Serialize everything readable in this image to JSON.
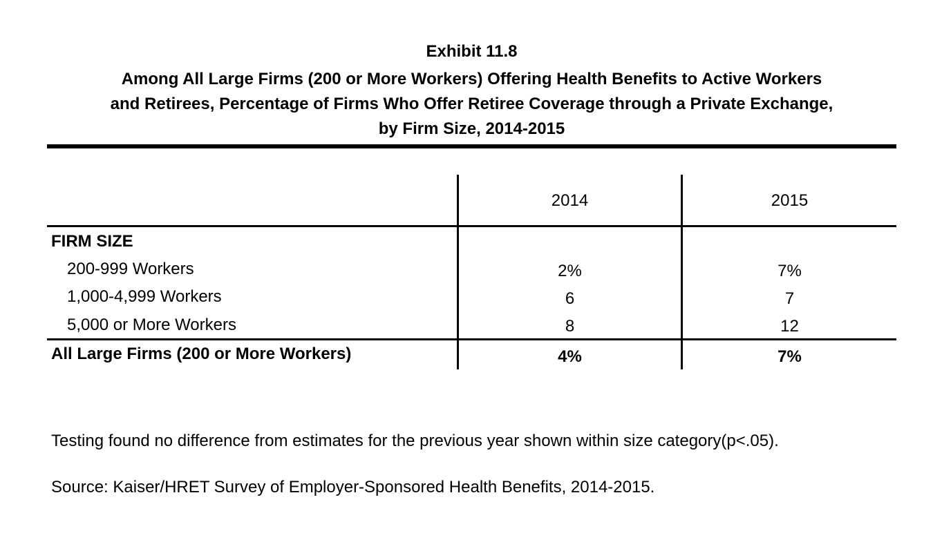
{
  "title": "Exhibit 11.8",
  "subtitle_lines": [
    "Among All Large Firms (200 or More Workers) Offering Health Benefits to Active Workers",
    "and Retirees, Percentage of Firms Who Offer Retiree Coverage through a Private Exchange,",
    "by Firm Size, 2014-2015"
  ],
  "chart_data": {
    "type": "table",
    "columns": [
      "2014",
      "2015"
    ],
    "section_header": "FIRM SIZE",
    "rows": [
      {
        "label": "200-999 Workers",
        "values": [
          "2%",
          "7%"
        ]
      },
      {
        "label": "1,000-4,999 Workers",
        "values": [
          "6",
          "7"
        ]
      },
      {
        "label": "5,000 or More Workers",
        "values": [
          "8",
          "12"
        ]
      }
    ],
    "total_row": {
      "label": "All Large Firms (200 or More Workers)",
      "values": [
        "4%",
        "7%"
      ]
    }
  },
  "notes": {
    "testing": "Testing found no difference from estimates for the previous year shown within size category(p<.05).",
    "source": "Source: Kaiser/HRET Survey of Employer-Sponsored Health Benefits, 2014-2015."
  }
}
